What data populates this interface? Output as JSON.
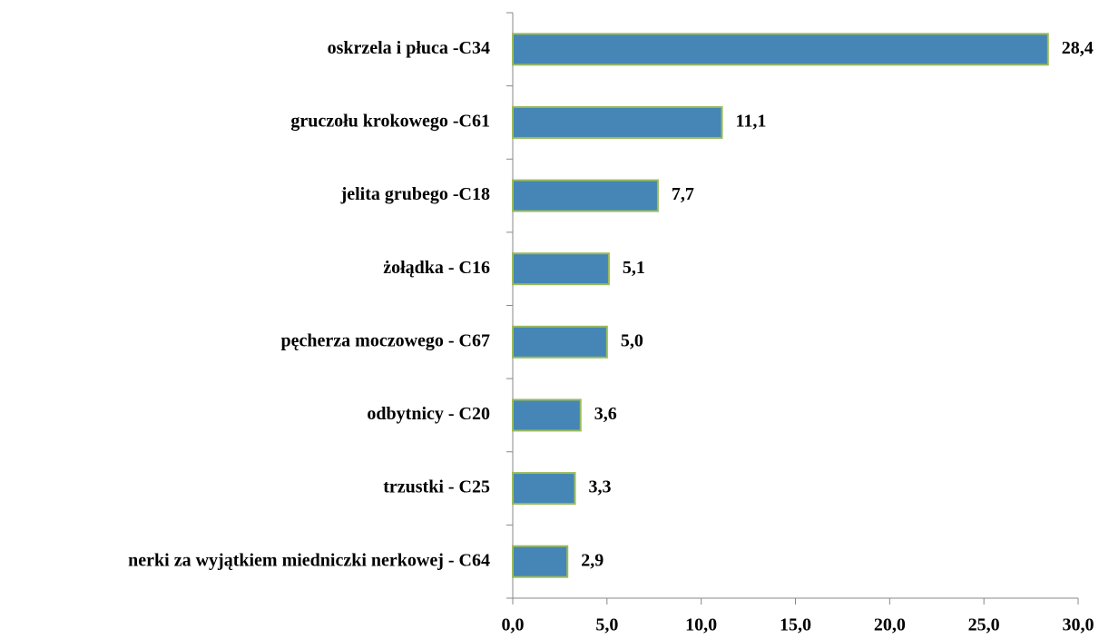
{
  "chart_data": {
    "type": "hbar",
    "categories": [
      "oskrzela i płuca -C34",
      "gruczołu krokowego -C61",
      "jelita grubego -C18",
      "żołądka - C16",
      "pęcherza moczowego - C67",
      "odbytnicy - C20",
      "trzustki - C25",
      "nerki za wyjątkiem miedniczki nerkowej - C64"
    ],
    "values": [
      28.4,
      11.1,
      7.7,
      5.1,
      5.0,
      3.6,
      3.3,
      2.9
    ],
    "value_labels": [
      "28,4",
      "11,1",
      "7,7",
      "5,1",
      "5,0",
      "3,6",
      "3,3",
      "2,9"
    ],
    "color": "#4586b6",
    "edge_color": "#9bbb59",
    "xlim": [
      0,
      30
    ],
    "xticks": [
      {
        "value": 0,
        "label": "0,0"
      },
      {
        "value": 5,
        "label": "5,0"
      },
      {
        "value": 10,
        "label": "10,0"
      },
      {
        "value": 15,
        "label": "15,0"
      },
      {
        "value": 20,
        "label": "20,0"
      },
      {
        "value": 25,
        "label": "25,0"
      },
      {
        "value": 30,
        "label": "30,0"
      }
    ],
    "grid": false
  }
}
